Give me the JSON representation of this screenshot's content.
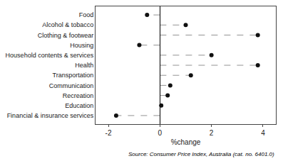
{
  "chart_data": {
    "type": "lollipop",
    "orientation": "horizontal",
    "categories": [
      "Food",
      "Alcohol & tobacco",
      "Clothing & footwear",
      "Housing",
      "Household contents & services",
      "Health",
      "Transportation",
      "Communication",
      "Recreation",
      "Education",
      "Financial & insurance services"
    ],
    "values": [
      -0.5,
      1.0,
      3.8,
      -0.8,
      2.0,
      3.8,
      1.2,
      0.4,
      0.3,
      0.05,
      -1.7
    ],
    "xlabel": "%change",
    "xlim": [
      -2.5,
      4.5
    ],
    "xticks": [
      -2,
      0,
      2,
      4
    ],
    "annotations": [
      "Source: Consumer Price Index, Australia (cat. no. 6401.0)"
    ],
    "color": "#111111",
    "line_style": "dashed",
    "marker": "circle",
    "grid": false
  }
}
